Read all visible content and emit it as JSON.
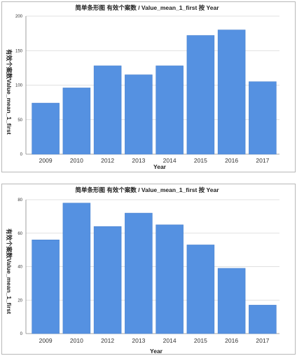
{
  "colors": {
    "bar": "#5591e1",
    "bar_stroke": "#4a82cf",
    "grid": "#d6d6d6",
    "border": "#b8b8b8"
  },
  "chart_data": [
    {
      "type": "bar",
      "title": "简单条形图 有效个案数 / Value_mean_1_first 按 Year",
      "xlabel": "Year",
      "ylabel": "有效个案数Value_mean_1_first",
      "ylim": [
        0,
        200
      ],
      "yticks": [
        0,
        50,
        100,
        150,
        200
      ],
      "grid": true,
      "categories": [
        "2009",
        "2010",
        "2012",
        "2013",
        "2014",
        "2015",
        "2016",
        "2017"
      ],
      "values": [
        74,
        96,
        128,
        115,
        128,
        172,
        180,
        105
      ]
    },
    {
      "type": "bar",
      "title": "简单条形图 有效个案数 / Value_mean_1_first 按 Year",
      "xlabel": "Year",
      "ylabel": "有效个案数Value_mean_1_first",
      "ylim": [
        0,
        80
      ],
      "yticks": [
        0,
        20,
        40,
        60,
        80
      ],
      "grid": true,
      "categories": [
        "2009",
        "2010",
        "2012",
        "2013",
        "2014",
        "2015",
        "2016",
        "2017"
      ],
      "values": [
        56,
        78,
        64,
        72,
        65,
        53,
        39,
        17
      ]
    }
  ]
}
